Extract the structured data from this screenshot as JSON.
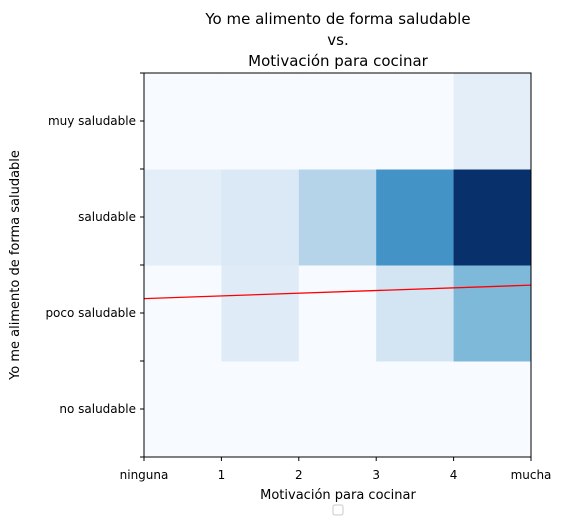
{
  "chart_data": {
    "type": "heatmap",
    "title_lines": [
      "Yo me alimento de forma saludable",
      "vs.",
      "Motivación para cocinar"
    ],
    "xlabel": "Motivación para cocinar",
    "ylabel": "Yo me alimento de forma saludable",
    "x_ticks": [
      "ninguna",
      "1",
      "2",
      "3",
      "4",
      "mucha"
    ],
    "y_ticks": [
      "no saludable",
      "poco saludable",
      "saludable",
      "muy saludable"
    ],
    "xlim": [
      0,
      5
    ],
    "ylim": [
      0,
      4
    ],
    "colormap": "Blues",
    "cells": [
      {
        "x": 0,
        "y": 0,
        "v": 0
      },
      {
        "x": 1,
        "y": 0,
        "v": 0
      },
      {
        "x": 2,
        "y": 0,
        "v": 0
      },
      {
        "x": 3,
        "y": 0,
        "v": 0
      },
      {
        "x": 4,
        "y": 0,
        "v": 0
      },
      {
        "x": 0,
        "y": 1,
        "v": 0
      },
      {
        "x": 1,
        "y": 1,
        "v": 0.12
      },
      {
        "x": 2,
        "y": 1,
        "v": 0
      },
      {
        "x": 3,
        "y": 1,
        "v": 0.18
      },
      {
        "x": 4,
        "y": 1,
        "v": 0.45
      },
      {
        "x": 0,
        "y": 2,
        "v": 0.1
      },
      {
        "x": 1,
        "y": 2,
        "v": 0.14
      },
      {
        "x": 2,
        "y": 2,
        "v": 0.3
      },
      {
        "x": 3,
        "y": 2,
        "v": 0.62
      },
      {
        "x": 4,
        "y": 2,
        "v": 1.0
      },
      {
        "x": 0,
        "y": 3,
        "v": 0
      },
      {
        "x": 1,
        "y": 3,
        "v": 0
      },
      {
        "x": 2,
        "y": 3,
        "v": 0
      },
      {
        "x": 3,
        "y": 3,
        "v": 0
      },
      {
        "x": 4,
        "y": 3,
        "v": 0.1
      }
    ],
    "trend_line": {
      "color": "#ff0000",
      "points": [
        [
          0,
          1.65
        ],
        [
          5,
          1.79
        ]
      ]
    },
    "grid": false
  }
}
